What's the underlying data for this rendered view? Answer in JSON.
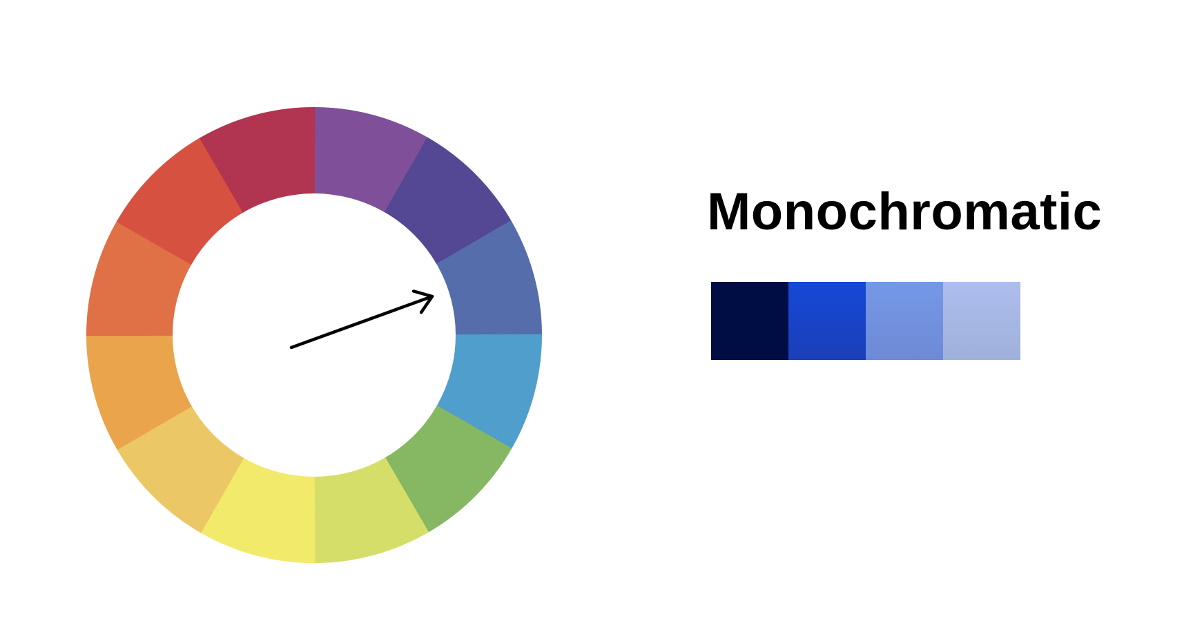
{
  "scheme": {
    "title": "Monochromatic"
  },
  "wheel": {
    "segments": [
      {
        "name": "violet",
        "color": "#7f5099"
      },
      {
        "name": "indigo",
        "color": "#544794"
      },
      {
        "name": "slate-blue",
        "color": "#556dab"
      },
      {
        "name": "blue",
        "color": "#509ecb"
      },
      {
        "name": "green",
        "color": "#86b763"
      },
      {
        "name": "yellow-green",
        "color": "#d5de68"
      },
      {
        "name": "yellow",
        "color": "#f2ea6a"
      },
      {
        "name": "light-orange",
        "color": "#ecc765"
      },
      {
        "name": "orange",
        "color": "#eaa44b"
      },
      {
        "name": "red-orange",
        "color": "#e07046"
      },
      {
        "name": "red",
        "color": "#d75141"
      },
      {
        "name": "crimson",
        "color": "#b13550"
      }
    ],
    "pointer": {
      "color": "#000000",
      "points_to": "slate-blue"
    }
  },
  "palette": {
    "swatches": [
      {
        "name": "navy",
        "color": "#000d44",
        "color_end": "#000d44"
      },
      {
        "name": "royal-blue",
        "color": "#1648d8",
        "color_end": "#1a3fb8"
      },
      {
        "name": "cornflower-blue",
        "color": "#7598e6",
        "color_end": "#6d8ad6"
      },
      {
        "name": "periwinkle",
        "color": "#adbdee",
        "color_end": "#9fb1da"
      }
    ]
  }
}
